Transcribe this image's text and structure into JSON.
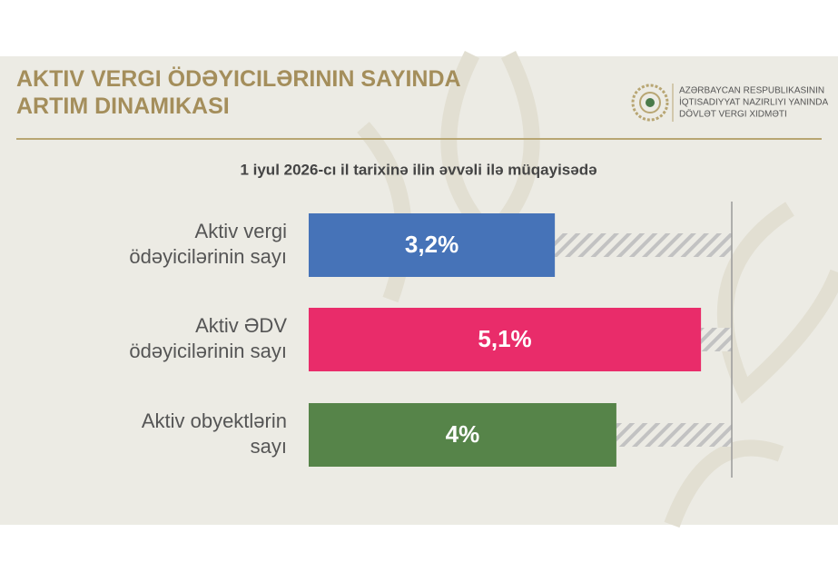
{
  "header": {
    "title": "AKTIV VERGI ÖDƏYICILƏRININ SAYINDA\nARTIM DINAMIKASI",
    "org": [
      "AZƏRBAYCAN RESPUBLIKASININ",
      "İQTISADIYYAT NAZIRLIYI YANINDA",
      "DÖVLƏT VERGI XIDMƏTI"
    ]
  },
  "chart_data": {
    "type": "hbar",
    "subtitle": "1 iyul 2026-cı il tarixinə ilin əvvəli ilə müqayisədə",
    "categories": [
      "Aktiv vergi\nödəyicilərinin sayı",
      "Aktiv ƏDV\nödəyicilərinin sayı",
      "Aktiv obyektlərin\nsayı"
    ],
    "values": [
      3.2,
      5.1,
      4
    ],
    "value_labels": [
      "3,2%",
      "5,1%",
      "4%"
    ],
    "colors": [
      "#4673b8",
      "#e92c6a",
      "#568449"
    ],
    "xlim": [
      0,
      5.5
    ]
  }
}
